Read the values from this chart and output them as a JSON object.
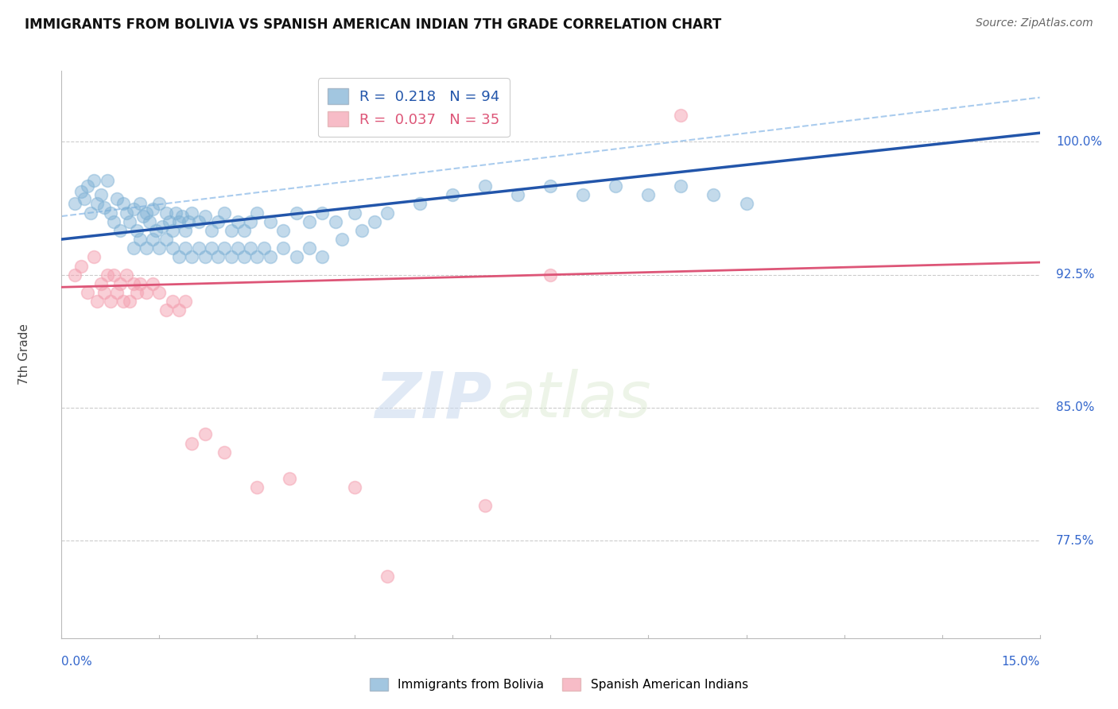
{
  "title": "IMMIGRANTS FROM BOLIVIA VS SPANISH AMERICAN INDIAN 7TH GRADE CORRELATION CHART",
  "source": "Source: ZipAtlas.com",
  "ylabel": "7th Grade",
  "yticks": [
    77.5,
    85.0,
    92.5,
    100.0
  ],
  "ytick_labels": [
    "77.5%",
    "85.0%",
    "92.5%",
    "100.0%"
  ],
  "xmin": 0.0,
  "xmax": 15.0,
  "ymin": 72.0,
  "ymax": 104.0,
  "legend_r_blue": "R =  0.218",
  "legend_n_blue": "N = 94",
  "legend_r_pink": "R =  0.037",
  "legend_n_pink": "N = 35",
  "blue_color": "#7BAFD4",
  "pink_color": "#F4A0B0",
  "trend_blue_color": "#2255AA",
  "trend_pink_color": "#DD5577",
  "dashed_line_color": "#AACCEE",
  "blue_scatter_x": [
    0.2,
    0.3,
    0.35,
    0.4,
    0.45,
    0.5,
    0.55,
    0.6,
    0.65,
    0.7,
    0.75,
    0.8,
    0.85,
    0.9,
    0.95,
    1.0,
    1.05,
    1.1,
    1.15,
    1.2,
    1.25,
    1.3,
    1.35,
    1.4,
    1.45,
    1.5,
    1.55,
    1.6,
    1.65,
    1.7,
    1.75,
    1.8,
    1.85,
    1.9,
    1.95,
    2.0,
    2.1,
    2.2,
    2.3,
    2.4,
    2.5,
    2.6,
    2.7,
    2.8,
    2.9,
    3.0,
    3.2,
    3.4,
    3.6,
    3.8,
    4.0,
    4.2,
    4.5,
    4.8,
    5.0,
    5.5,
    6.0,
    6.5,
    7.0,
    7.5,
    8.0,
    8.5,
    9.0,
    9.5,
    10.0,
    10.5,
    1.1,
    1.2,
    1.3,
    1.4,
    1.5,
    1.6,
    1.7,
    1.8,
    1.9,
    2.0,
    2.1,
    2.2,
    2.3,
    2.4,
    2.5,
    2.6,
    2.7,
    2.8,
    2.9,
    3.0,
    3.1,
    3.2,
    3.4,
    3.6,
    3.8,
    4.0,
    4.3,
    4.6
  ],
  "blue_scatter_y": [
    96.5,
    97.2,
    96.8,
    97.5,
    96.0,
    97.8,
    96.5,
    97.0,
    96.3,
    97.8,
    96.0,
    95.5,
    96.8,
    95.0,
    96.5,
    96.0,
    95.5,
    96.2,
    95.0,
    96.5,
    95.8,
    96.0,
    95.5,
    96.2,
    95.0,
    96.5,
    95.2,
    96.0,
    95.5,
    95.0,
    96.0,
    95.5,
    95.8,
    95.0,
    95.5,
    96.0,
    95.5,
    95.8,
    95.0,
    95.5,
    96.0,
    95.0,
    95.5,
    95.0,
    95.5,
    96.0,
    95.5,
    95.0,
    96.0,
    95.5,
    96.0,
    95.5,
    96.0,
    95.5,
    96.0,
    96.5,
    97.0,
    97.5,
    97.0,
    97.5,
    97.0,
    97.5,
    97.0,
    97.5,
    97.0,
    96.5,
    94.0,
    94.5,
    94.0,
    94.5,
    94.0,
    94.5,
    94.0,
    93.5,
    94.0,
    93.5,
    94.0,
    93.5,
    94.0,
    93.5,
    94.0,
    93.5,
    94.0,
    93.5,
    94.0,
    93.5,
    94.0,
    93.5,
    94.0,
    93.5,
    94.0,
    93.5,
    94.5,
    95.0
  ],
  "pink_scatter_x": [
    0.2,
    0.3,
    0.4,
    0.5,
    0.55,
    0.6,
    0.65,
    0.7,
    0.75,
    0.8,
    0.85,
    0.9,
    0.95,
    1.0,
    1.05,
    1.1,
    1.15,
    1.2,
    1.3,
    1.4,
    1.5,
    1.6,
    1.7,
    1.8,
    1.9,
    2.0,
    2.2,
    2.5,
    3.0,
    3.5,
    4.5,
    5.0,
    6.5,
    7.5,
    9.5
  ],
  "pink_scatter_y": [
    92.5,
    93.0,
    91.5,
    93.5,
    91.0,
    92.0,
    91.5,
    92.5,
    91.0,
    92.5,
    91.5,
    92.0,
    91.0,
    92.5,
    91.0,
    92.0,
    91.5,
    92.0,
    91.5,
    92.0,
    91.5,
    90.5,
    91.0,
    90.5,
    91.0,
    83.0,
    83.5,
    82.5,
    80.5,
    81.0,
    80.5,
    75.5,
    79.5,
    92.5,
    101.5
  ],
  "blue_trend_x": [
    0.0,
    15.0
  ],
  "blue_trend_y": [
    94.5,
    100.5
  ],
  "pink_trend_x": [
    0.0,
    15.0
  ],
  "pink_trend_y": [
    91.8,
    93.2
  ],
  "dashed_trend_x": [
    0.0,
    15.0
  ],
  "dashed_trend_y": [
    95.8,
    102.5
  ],
  "watermark_zip": "ZIP",
  "watermark_atlas": "atlas",
  "background_color": "#FFFFFF",
  "grid_color": "#CCCCCC"
}
